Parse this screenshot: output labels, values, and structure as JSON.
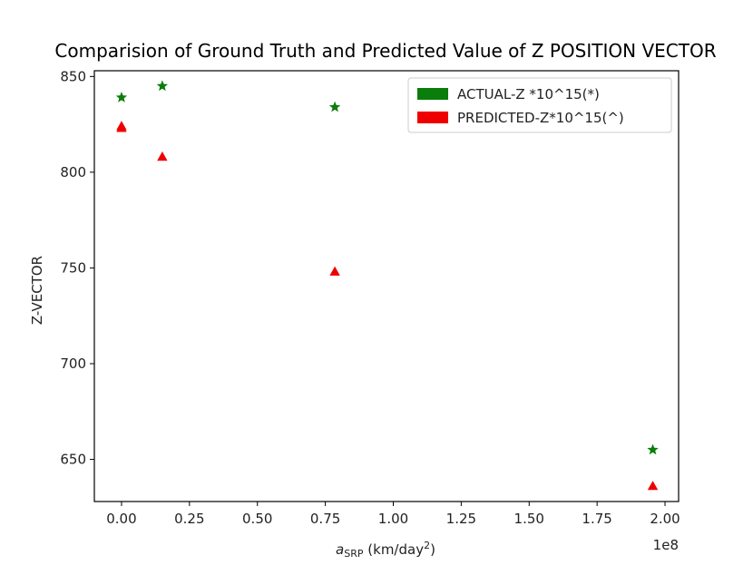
{
  "chart_data": {
    "type": "scatter",
    "title": "Comparision of Ground Truth and Predicted Value of Z POSITION VECTOR",
    "xlabel": {
      "main": "a",
      "sub": "SRP",
      "rest": " (km/day",
      "sup": "2",
      "close": ")"
    },
    "ylabel": "Z-VECTOR",
    "x_offset_label": "1e8",
    "xlim": [
      -0.1,
      2.05
    ],
    "ylim": [
      628,
      853
    ],
    "x_ticks": [
      0.0,
      0.25,
      0.5,
      0.75,
      1.0,
      1.25,
      1.5,
      1.75,
      2.0
    ],
    "x_tick_labels": [
      "0.00",
      "0.25",
      "0.50",
      "0.75",
      "1.00",
      "1.25",
      "1.50",
      "1.75",
      "2.00"
    ],
    "y_ticks": [
      650,
      700,
      750,
      800,
      850
    ],
    "y_tick_labels": [
      "650",
      "700",
      "750",
      "800",
      "850"
    ],
    "grid": false,
    "legend_position": "top-right",
    "series": [
      {
        "name": "ACTUAL-Z *10^15(*)",
        "color": "#0a7d0a",
        "marker": "star",
        "points": [
          {
            "x": 0.0,
            "y": 839
          },
          {
            "x": 0.15,
            "y": 845
          },
          {
            "x": 0.785,
            "y": 834
          },
          {
            "x": 1.955,
            "y": 655
          }
        ]
      },
      {
        "name": "PREDICTED-Z*10^15(^)",
        "color": "#ee0000",
        "marker": "triangle",
        "points": [
          {
            "x": 0.0,
            "y": 823
          },
          {
            "x": 0.0,
            "y": 824
          },
          {
            "x": 0.15,
            "y": 808
          },
          {
            "x": 0.785,
            "y": 748
          },
          {
            "x": 1.955,
            "y": 636
          }
        ]
      }
    ]
  }
}
